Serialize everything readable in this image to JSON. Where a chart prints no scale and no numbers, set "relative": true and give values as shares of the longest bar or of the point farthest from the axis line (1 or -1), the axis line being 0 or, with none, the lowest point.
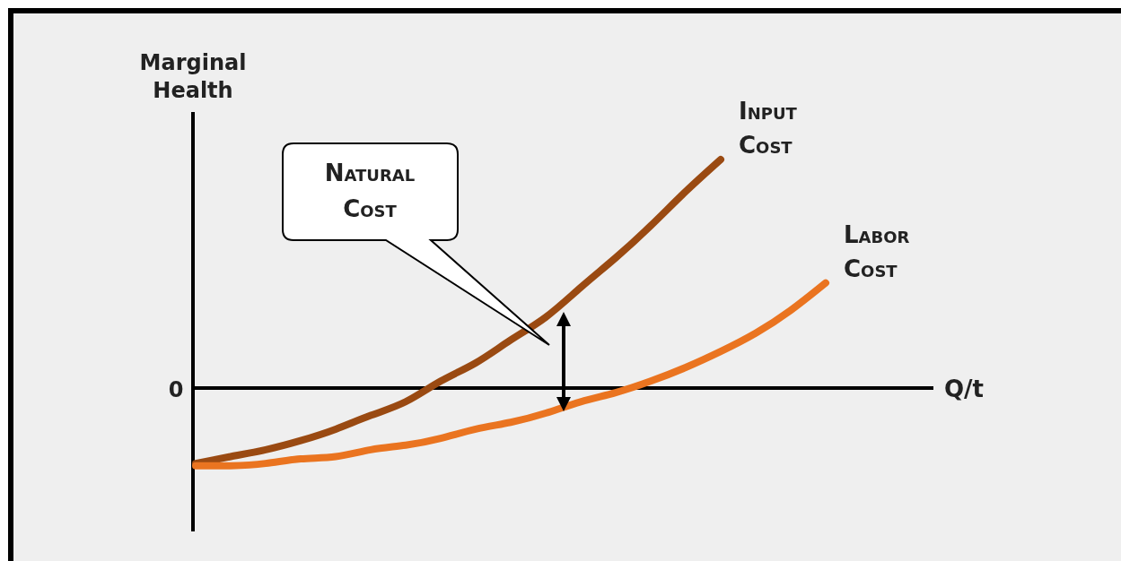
{
  "chart_data": {
    "type": "line",
    "relative": true,
    "xlabel": "Q/t",
    "ylabel": "Marginal Health",
    "categories": [
      null,
      null,
      null,
      null,
      null,
      null,
      null,
      null,
      null,
      null,
      null,
      null,
      null,
      null,
      null,
      null,
      null,
      null,
      null
    ],
    "series": [
      {
        "name": "Input Cost",
        "color": "#9a4a12",
        "values": [
          -0.33,
          -0.3,
          -0.27,
          -0.23,
          -0.18,
          -0.12,
          -0.06,
          0.03,
          0.11,
          0.21,
          0.31,
          0.44,
          0.57,
          0.71,
          0.86,
          1,
          null,
          null,
          null
        ]
      },
      {
        "name": "Labor Cost",
        "color": "#ea7420",
        "values": [
          -0.34,
          -0.34,
          -0.33,
          -0.31,
          -0.3,
          -0.27,
          -0.25,
          -0.22,
          -0.18,
          -0.15,
          -0.11,
          -0.06,
          -0.02,
          0.03,
          0.09,
          0.16,
          0.24,
          0.34,
          0.46
        ]
      }
    ],
    "annotations": [
      "0",
      "Natural Cost"
    ]
  }
}
